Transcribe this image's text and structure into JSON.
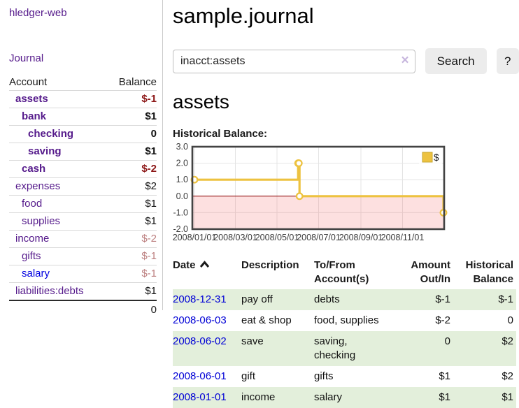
{
  "colors": {
    "link_purple": "#551a8b",
    "link_blue": "#0000e0",
    "date_link_blue": "#0000d6",
    "negative_strong": "#8c1616",
    "negative_soft": "#bc7f7f",
    "row_stripe_green": "#e3efdb",
    "chart_series_yellow": "#edc240",
    "chart_zero_line_red": "#8b0000",
    "button_gray": "#ececec"
  },
  "sidebar": {
    "brand": "hledger-web",
    "nav": [
      {
        "label": "Journal"
      }
    ],
    "accounts_table": {
      "headers": [
        "Account",
        "Balance"
      ],
      "rows": [
        {
          "name": "assets",
          "indent": 1,
          "balance": "$-1",
          "bold": true,
          "negative": true
        },
        {
          "name": "bank",
          "indent": 2,
          "balance": "$1",
          "bold": true,
          "negative": false
        },
        {
          "name": "checking",
          "indent": 3,
          "balance": "0",
          "bold": true,
          "negative": false
        },
        {
          "name": "saving",
          "indent": 3,
          "balance": "$1",
          "bold": true,
          "negative": false
        },
        {
          "name": "cash",
          "indent": 2,
          "balance": "$-2",
          "bold": true,
          "negative": true
        },
        {
          "name": "expenses",
          "indent": 1,
          "balance": "$2",
          "bold": false,
          "negative": false
        },
        {
          "name": "food",
          "indent": 2,
          "balance": "$1",
          "bold": false,
          "negative": false
        },
        {
          "name": "supplies",
          "indent": 2,
          "balance": "$1",
          "bold": false,
          "negative": false
        },
        {
          "name": "income",
          "indent": 1,
          "balance": "$-2",
          "bold": false,
          "negative": true
        },
        {
          "name": "gifts",
          "indent": 2,
          "balance": "$-1",
          "bold": false,
          "negative": true
        },
        {
          "name": "salary",
          "indent": 2,
          "balance": "$-1",
          "bold": false,
          "negative": true,
          "link_style": "unvisited"
        },
        {
          "name": "liabilities:debts",
          "indent": 1,
          "balance": "$1",
          "bold": false,
          "negative": false
        }
      ],
      "total": "0"
    }
  },
  "header": {
    "title": "sample.journal"
  },
  "search": {
    "value": "inacct:assets",
    "clear_icon": "×",
    "button": "Search",
    "help_button": "?"
  },
  "account_page": {
    "heading": "assets",
    "chart_label": "Historical Balance:"
  },
  "chart_data": {
    "type": "line",
    "steps": true,
    "title": "Historical Balance",
    "ylim": [
      -2,
      3
    ],
    "y_ticks": [
      3.0,
      2.0,
      1.0,
      0.0,
      -1.0,
      -2.0
    ],
    "x_ticks": [
      "2008/01/01",
      "2008/03/01",
      "2008/05/01",
      "2008/07/01",
      "2008/09/01",
      "2008/11/01"
    ],
    "series": [
      {
        "name": "$",
        "color": "#edc240",
        "points": [
          [
            "2008-01-01",
            1
          ],
          [
            "2008-06-01",
            2
          ],
          [
            "2008-06-02",
            2
          ],
          [
            "2008-06-03",
            0
          ],
          [
            "2008-12-31",
            -1
          ]
        ]
      }
    ],
    "legend": "$",
    "legend_position": "top-right",
    "grid": true,
    "negative_region_color": "rgba(245,85,85,0.18)",
    "zero_line_color": "#8b0000"
  },
  "transactions": {
    "columns": [
      "Date",
      "Description",
      "To/From Account(s)",
      "Amount Out/In",
      "Historical Balance"
    ],
    "sort": {
      "column": "Date",
      "direction": "ascending"
    },
    "rows": [
      {
        "date": "2008-12-31",
        "description": "pay off",
        "accounts": "debts",
        "amount": "$-1",
        "amount_negative": true,
        "balance": "$-1",
        "balance_negative": true
      },
      {
        "date": "2008-06-03",
        "description": "eat & shop",
        "accounts": "food, supplies",
        "amount": "$-2",
        "amount_negative": true,
        "balance": "0",
        "balance_negative": false
      },
      {
        "date": "2008-06-02",
        "description": "save",
        "accounts": "saving, checking",
        "amount": "0",
        "amount_negative": false,
        "balance": "$2",
        "balance_negative": false
      },
      {
        "date": "2008-06-01",
        "description": "gift",
        "accounts": "gifts",
        "amount": "$1",
        "amount_negative": false,
        "balance": "$2",
        "balance_negative": false
      },
      {
        "date": "2008-01-01",
        "description": "income",
        "accounts": "salary",
        "amount": "$1",
        "amount_negative": false,
        "balance": "$1",
        "balance_negative": false
      }
    ]
  }
}
